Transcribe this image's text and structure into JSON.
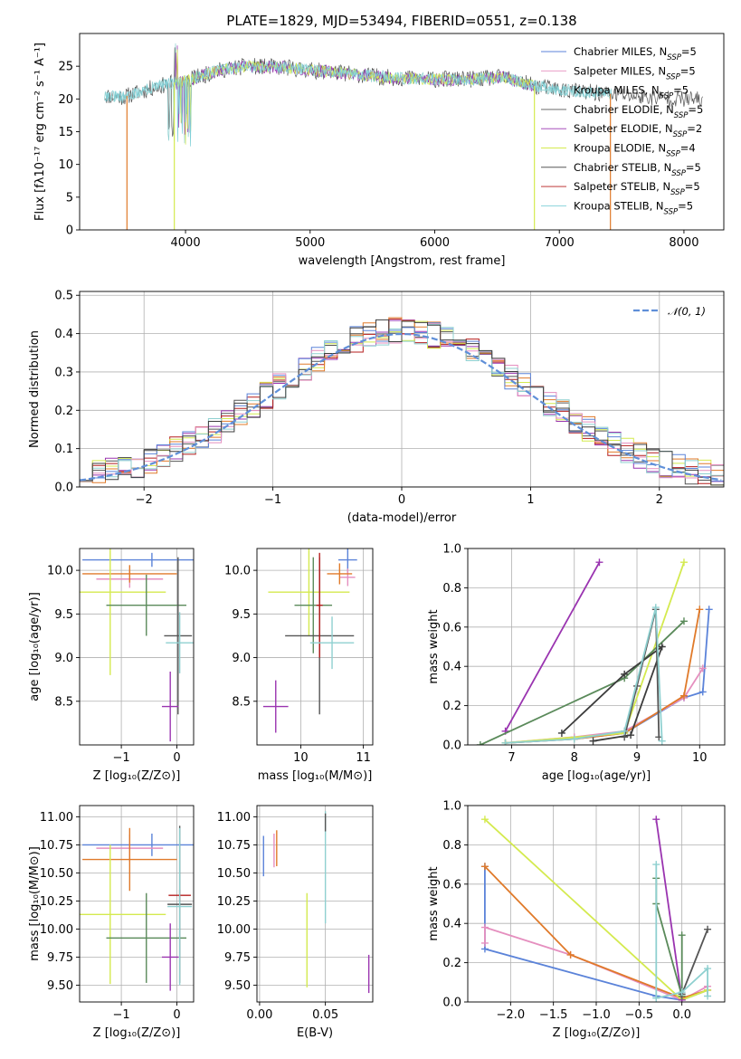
{
  "colors": {
    "chabrier_miles": "#5b83d9",
    "salpeter_miles": "#e58fbf",
    "kroupa_miles": "#8fd0d0",
    "chabrier_elodie": "#555555",
    "salpeter_elodie": "#9a34b0",
    "kroupa_elodie": "#d4ea4f",
    "chabrier_stelib": "#3c3c3c",
    "salpeter_stelib": "#b51d1d",
    "kroupa_stelib": "#7fd0d7",
    "orange": "#e07a2a",
    "green": "#5a8a5a",
    "gauss": "#5f8fd8"
  },
  "chart_data": [
    {
      "id": "spectrum",
      "type": "line",
      "title": "PLATE=1829, MJD=53494, FIBERID=0551, z=0.138",
      "xlabel": "wavelength [Angstrom, rest frame]",
      "ylabel": "Flux [fλ10⁻¹⁷ erg cm⁻² s⁻¹ A⁻¹]",
      "xlim": [
        3150,
        8320
      ],
      "ylim": [
        0,
        30
      ],
      "xticks": [
        4000,
        5000,
        6000,
        7000,
        8000
      ],
      "yticks": [
        0,
        5,
        10,
        15,
        20,
        25
      ],
      "grid": false,
      "legend_position": "top-right",
      "legend": [
        {
          "label": "Chabrier MILES, N",
          "sub": "SSP",
          "suffix": "=5",
          "color": "#5b83d9"
        },
        {
          "label": "Salpeter MILES, N",
          "sub": "SSP",
          "suffix": "=5",
          "color": "#e58fbf"
        },
        {
          "label": "Kroupa MILES, N",
          "sub": "SSP",
          "suffix": "=5",
          "color": "#8fd0d0"
        },
        {
          "label": "Chabrier ELODIE, N",
          "sub": "SSP",
          "suffix": "=5",
          "color": "#555555"
        },
        {
          "label": "Salpeter ELODIE, N",
          "sub": "SSP",
          "suffix": "=2",
          "color": "#9a34b0"
        },
        {
          "label": "Kroupa ELODIE, N",
          "sub": "SSP",
          "suffix": "=4",
          "color": "#d4ea4f"
        },
        {
          "label": "Chabrier STELIB, N",
          "sub": "SSP",
          "suffix": "=5",
          "color": "#3c3c3c"
        },
        {
          "label": "Salpeter STELIB, N",
          "sub": "SSP",
          "suffix": "=5",
          "color": "#b51d1d"
        },
        {
          "label": "Kroupa STELIB, N",
          "sub": "SSP",
          "suffix": "=5",
          "color": "#7fd0d7"
        }
      ],
      "continuum": [
        [
          3350,
          20.5
        ],
        [
          3500,
          20.3
        ],
        [
          3700,
          21.5
        ],
        [
          3900,
          22.5
        ],
        [
          4000,
          22.8
        ],
        [
          4300,
          24.5
        ],
        [
          4500,
          25.0
        ],
        [
          4800,
          24.8
        ],
        [
          5000,
          24.4
        ],
        [
          5300,
          23.9
        ],
        [
          5600,
          23.3
        ],
        [
          6000,
          23.0
        ],
        [
          6300,
          23.0
        ],
        [
          6550,
          23.3
        ],
        [
          6800,
          22.0
        ],
        [
          7100,
          21.2
        ],
        [
          7400,
          20.8
        ],
        [
          7700,
          20.3
        ],
        [
          8000,
          20.0
        ],
        [
          8150,
          19.8
        ]
      ],
      "cutoffs": [
        {
          "color": "#e07a2a",
          "x0": 3530,
          "x1": 7410
        },
        {
          "color": "#d4ea4f",
          "x0": 3910,
          "x1": 6800
        }
      ]
    },
    {
      "id": "residuals",
      "type": "step",
      "title": "",
      "xlabel": "(data-model)/error",
      "ylabel": "Normed distribution",
      "xlim": [
        -2.5,
        2.5
      ],
      "ylim": [
        0,
        0.51
      ],
      "xticks": [
        -2,
        -1,
        0,
        1,
        2
      ],
      "yticks": [
        0.0,
        0.1,
        0.2,
        0.3,
        0.4,
        0.5
      ],
      "grid": true,
      "legend_position": "top-right",
      "legend": [
        {
          "label": "𝒩(0, 1)",
          "color": "#5f8fd8",
          "style": "dashed"
        }
      ],
      "bin_width": 0.1
    },
    {
      "id": "age_vs_z",
      "type": "errorbar",
      "xlabel": "Z [log₁₀(Z/Z⊙)]",
      "ylabel": "age  [log₁₀(age/yr)]",
      "xlim": [
        -1.75,
        0.3
      ],
      "ylim": [
        8.0,
        10.25
      ],
      "xticks": [
        -1,
        0
      ],
      "yticks": [
        8.5,
        9.0,
        9.5,
        10.0
      ],
      "grid": true,
      "points": [
        {
          "color": "#5b83d9",
          "x": -0.45,
          "xerr": 1.25,
          "y": 10.12,
          "yerr": 0.08
        },
        {
          "color": "#e58fbf",
          "x": -0.85,
          "xerr": 0.6,
          "y": 9.9,
          "yerr": 0.1
        },
        {
          "color": "#e07a2a",
          "x": -0.85,
          "xerr": 0.85,
          "y": 9.96,
          "yerr": 0.1
        },
        {
          "color": "#d4ea4f",
          "x": -1.2,
          "xerr": 1.0,
          "y": 9.75,
          "yerr": 0.95
        },
        {
          "color": "#5a8a5a",
          "x": -0.55,
          "xerr": 0.72,
          "y": 9.6,
          "yerr": 0.35
        },
        {
          "color": "#555555",
          "x": 0.02,
          "xerr": 0.25,
          "y": 9.25,
          "yerr": 0.9
        },
        {
          "color": "#8fd0d0",
          "x": 0.05,
          "xerr": 0.25,
          "y": 9.17,
          "yerr": 0.35
        },
        {
          "color": "#9a34b0",
          "x": -0.12,
          "xerr": 0.15,
          "y": 8.44,
          "yerr": 0.4
        }
      ]
    },
    {
      "id": "age_vs_mass",
      "type": "errorbar",
      "xlabel": "mass [log₁₀(M/M⊙)]",
      "ylabel": "",
      "xlim": [
        9.3,
        11.15
      ],
      "ylim": [
        8.0,
        10.25
      ],
      "xticks": [
        10,
        11
      ],
      "yticks": [
        8.5,
        9.0,
        9.5,
        10.0
      ],
      "grid": true,
      "points": [
        {
          "color": "#5b83d9",
          "x": 10.75,
          "xerr": 0.15,
          "y": 10.12,
          "yerr": 0.15
        },
        {
          "color": "#e58fbf",
          "x": 10.75,
          "xerr": 0.12,
          "y": 9.92,
          "yerr": 0.1
        },
        {
          "color": "#e07a2a",
          "x": 10.62,
          "xerr": 0.2,
          "y": 9.96,
          "yerr": 0.12
        },
        {
          "color": "#d4ea4f",
          "x": 10.13,
          "xerr": 0.65,
          "y": 9.75,
          "yerr": 0.5
        },
        {
          "color": "#5a8a5a",
          "x": 10.2,
          "xerr": 0.3,
          "y": 9.6,
          "yerr": 0.55
        },
        {
          "color": "#555555",
          "x": 10.3,
          "xerr": 0.55,
          "y": 9.25,
          "yerr": 0.9
        },
        {
          "color": "#b51d1d",
          "x": 10.3,
          "xerr": 0.05,
          "y": 9.6,
          "yerr": 0.6
        },
        {
          "color": "#8fd0d0",
          "x": 10.5,
          "xerr": 0.35,
          "y": 9.17,
          "yerr": 0.3
        },
        {
          "color": "#9a34b0",
          "x": 9.6,
          "xerr": 0.2,
          "y": 8.44,
          "yerr": 0.3
        }
      ]
    },
    {
      "id": "weight_vs_age",
      "type": "line",
      "xlabel": "age  [log₁₀(age/yr)]",
      "ylabel": "mass weight",
      "xlim": [
        6.3,
        10.4
      ],
      "ylim": [
        0,
        1.0
      ],
      "xticks": [
        7,
        8,
        9,
        10
      ],
      "yticks": [
        0.0,
        0.2,
        0.4,
        0.6,
        0.8,
        1.0
      ],
      "grid": true,
      "series": [
        {
          "color": "#5b83d9",
          "x": [
            6.9,
            8.0,
            8.8,
            9.75,
            10.05,
            10.15
          ],
          "y": [
            0.01,
            0.03,
            0.06,
            0.24,
            0.27,
            0.69
          ]
        },
        {
          "color": "#e58fbf",
          "x": [
            6.9,
            8.0,
            8.8,
            9.75,
            10.05
          ],
          "y": [
            0.01,
            0.04,
            0.07,
            0.24,
            0.39
          ]
        },
        {
          "color": "#e07a2a",
          "x": [
            6.9,
            8.0,
            8.8,
            9.75,
            10.0
          ],
          "y": [
            0.01,
            0.03,
            0.06,
            0.25,
            0.69
          ]
        },
        {
          "color": "#d4ea4f",
          "x": [
            6.9,
            8.8,
            9.75
          ],
          "y": [
            0.01,
            0.06,
            0.93
          ]
        },
        {
          "color": "#9a34b0",
          "x": [
            6.9,
            8.4
          ],
          "y": [
            0.07,
            0.93
          ]
        },
        {
          "color": "#5a8a5a",
          "x": [
            6.5,
            8.8,
            9.75
          ],
          "y": [
            0.0,
            0.34,
            0.63
          ]
        },
        {
          "color": "#3c3c3c",
          "x": [
            7.8,
            8.8,
            9.4,
            8.9,
            8.3
          ],
          "y": [
            0.06,
            0.36,
            0.5,
            0.05,
            0.02
          ]
        },
        {
          "color": "#555555",
          "x": [
            8.8,
            9.0,
            9.3,
            9.35
          ],
          "y": [
            0.04,
            0.3,
            0.69,
            0.04
          ]
        },
        {
          "color": "#8fd0d0",
          "x": [
            6.9,
            8.0,
            8.8,
            9.3,
            9.4
          ],
          "y": [
            0.01,
            0.03,
            0.07,
            0.7,
            0.02
          ]
        }
      ]
    },
    {
      "id": "mass_vs_z",
      "type": "errorbar",
      "xlabel": "Z [log₁₀(Z/Z⊙)]",
      "ylabel": "mass [log₁₀(M/M⊙)]",
      "xlim": [
        -1.75,
        0.3
      ],
      "ylim": [
        9.35,
        11.1
      ],
      "xticks": [
        -1,
        0
      ],
      "yticks": [
        9.5,
        9.75,
        10.0,
        10.25,
        10.5,
        10.75,
        11.0
      ],
      "grid": true,
      "points": [
        {
          "color": "#5b83d9",
          "x": -0.45,
          "xerr": 1.25,
          "y": 10.75,
          "yerr": 0.1
        },
        {
          "color": "#e58fbf",
          "x": -0.85,
          "xerr": 0.6,
          "y": 10.72,
          "yerr": 0.12
        },
        {
          "color": "#e07a2a",
          "x": -0.85,
          "xerr": 0.85,
          "y": 10.62,
          "yerr": 0.28
        },
        {
          "color": "#d4ea4f",
          "x": -1.2,
          "xerr": 1.0,
          "y": 10.13,
          "yerr": 0.62
        },
        {
          "color": "#5a8a5a",
          "x": -0.55,
          "xerr": 0.72,
          "y": 9.92,
          "yerr": 0.4
        },
        {
          "color": "#555555",
          "x": 0.05,
          "xerr": 0.22,
          "y": 10.22,
          "yerr": 0.7
        },
        {
          "color": "#b51d1d",
          "x": 0.05,
          "xerr": 0.2,
          "y": 10.3,
          "yerr": 0.05
        },
        {
          "color": "#8fd0d0",
          "x": 0.05,
          "xerr": 0.22,
          "y": 10.2,
          "yerr": 0.7
        },
        {
          "color": "#9a34b0",
          "x": -0.12,
          "xerr": 0.15,
          "y": 9.75,
          "yerr": 0.3
        }
      ]
    },
    {
      "id": "mass_vs_ebv",
      "type": "errorbar",
      "xlabel": "E(B-V)",
      "ylabel": "",
      "xlim": [
        -0.002,
        0.086
      ],
      "ylim": [
        9.35,
        11.1
      ],
      "xticks": [
        0.0,
        0.05
      ],
      "yticks": [
        9.5,
        9.75,
        10.0,
        10.25,
        10.5,
        10.75,
        11.0
      ],
      "grid": true,
      "points": [
        {
          "color": "#5b83d9",
          "x": 0.003,
          "xerr": 0,
          "y": 10.65,
          "yerr": 0.18
        },
        {
          "color": "#e58fbf",
          "x": 0.011,
          "xerr": 0,
          "y": 10.7,
          "yerr": 0.15
        },
        {
          "color": "#e07a2a",
          "x": 0.013,
          "xerr": 0,
          "y": 10.72,
          "yerr": 0.16
        },
        {
          "color": "#d4ea4f",
          "x": 0.036,
          "xerr": 0,
          "y": 9.9,
          "yerr": 0.42
        },
        {
          "color": "#8fd0d0",
          "x": 0.05,
          "xerr": 0,
          "y": 10.55,
          "yerr": 0.5
        },
        {
          "color": "#555555",
          "x": 0.05,
          "xerr": 0,
          "y": 10.95,
          "yerr": 0.08
        },
        {
          "color": "#9a34b0",
          "x": 0.083,
          "xerr": 0,
          "y": 9.6,
          "yerr": 0.17
        }
      ]
    },
    {
      "id": "weight_vs_z",
      "type": "line",
      "xlabel": "Z [log₁₀(Z/Z⊙)]",
      "ylabel": "mass weight",
      "xlim": [
        -2.5,
        0.5
      ],
      "ylim": [
        0,
        1.0
      ],
      "xticks": [
        -2.0,
        -1.5,
        -1.0,
        -0.5,
        0.0
      ],
      "yticks": [
        0.0,
        0.2,
        0.4,
        0.6,
        0.8,
        1.0
      ],
      "grid": true,
      "series": [
        {
          "color": "#5b83d9",
          "x": [
            -2.3,
            -2.3,
            -0.3,
            0.0,
            0.3
          ],
          "y": [
            0.69,
            0.27,
            0.03,
            0.01,
            0.06
          ]
        },
        {
          "color": "#e58fbf",
          "x": [
            -2.3,
            -2.3,
            -1.3,
            0.0,
            0.3
          ],
          "y": [
            0.3,
            0.38,
            0.24,
            0.01,
            0.08
          ]
        },
        {
          "color": "#e07a2a",
          "x": [
            -2.3,
            -1.3,
            0.0,
            0.3
          ],
          "y": [
            0.69,
            0.24,
            0.02,
            0.06
          ]
        },
        {
          "color": "#d4ea4f",
          "x": [
            -2.3,
            0.0,
            0.3
          ],
          "y": [
            0.93,
            0.01,
            0.06
          ]
        },
        {
          "color": "#9a34b0",
          "x": [
            -0.3,
            0.0
          ],
          "y": [
            0.93,
            0.01
          ]
        },
        {
          "color": "#5a8a5a",
          "x": [
            -0.3,
            -0.3,
            0.0,
            0.0
          ],
          "y": [
            0.63,
            0.5,
            0.03,
            0.34
          ]
        },
        {
          "color": "#555555",
          "x": [
            0.0,
            0.3
          ],
          "y": [
            0.04,
            0.37
          ]
        },
        {
          "color": "#8fd0d0",
          "x": [
            -0.3,
            -0.3,
            0.0,
            0.3,
            0.3
          ],
          "y": [
            0.7,
            0.02,
            0.05,
            0.17,
            0.03
          ]
        }
      ]
    }
  ]
}
